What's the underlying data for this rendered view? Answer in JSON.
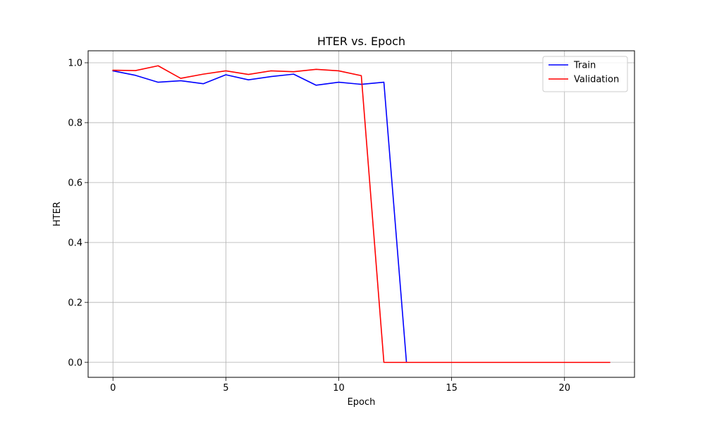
{
  "chart_data": {
    "type": "line",
    "title": "HTER vs. Epoch",
    "xlabel": "Epoch",
    "ylabel": "HTER",
    "xlim": [
      -1.1,
      23.1
    ],
    "ylim": [
      -0.05,
      1.04
    ],
    "xticks": [
      0,
      5,
      10,
      15,
      20
    ],
    "yticks": [
      0.0,
      0.2,
      0.4,
      0.6,
      0.8,
      1.0
    ],
    "grid": true,
    "legend_position": "top-right",
    "series": [
      {
        "name": "Train",
        "color": "#0000ff",
        "x": [
          0,
          1,
          2,
          3,
          4,
          5,
          6,
          7,
          8,
          9,
          10,
          11,
          12,
          13,
          14,
          15,
          16,
          17,
          18,
          19,
          20,
          21,
          22
        ],
        "values": [
          0.973,
          0.958,
          0.935,
          0.94,
          0.93,
          0.96,
          0.943,
          0.954,
          0.962,
          0.925,
          0.935,
          0.928,
          0.935,
          0.0,
          0.0,
          0.0,
          0.0,
          0.0,
          0.0,
          0.0,
          0.0,
          0.0,
          0.0
        ]
      },
      {
        "name": "Validation",
        "color": "#ff0000",
        "x": [
          0,
          1,
          2,
          3,
          4,
          5,
          6,
          7,
          8,
          9,
          10,
          11,
          12,
          13,
          14,
          15,
          16,
          17,
          18,
          19,
          20,
          21,
          22
        ],
        "values": [
          0.975,
          0.974,
          0.99,
          0.948,
          0.962,
          0.973,
          0.961,
          0.973,
          0.97,
          0.978,
          0.973,
          0.957,
          0.0,
          0.0,
          0.0,
          0.0,
          0.0,
          0.0,
          0.0,
          0.0,
          0.0,
          0.0,
          0.0
        ]
      }
    ]
  }
}
